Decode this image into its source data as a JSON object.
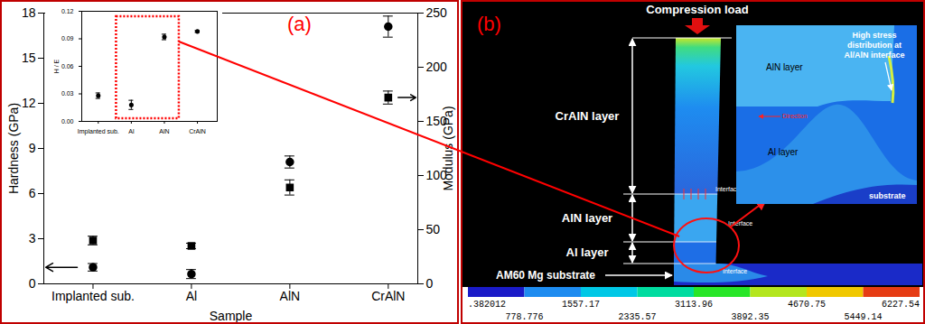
{
  "chart_data": [
    {
      "type": "scatter",
      "title": "(a)",
      "categories": [
        "Implanted sub.",
        "Al",
        "AlN",
        "CrAlN"
      ],
      "xlabel": "Sample",
      "ylabel": "Hardness (GPa)",
      "y2label": "Modulus (GPa)",
      "ylim": [
        0,
        18
      ],
      "yticks": [
        0,
        3,
        6,
        9,
        12,
        15,
        18
      ],
      "y2lim": [
        0,
        250
      ],
      "y2ticks": [
        0,
        50,
        100,
        150,
        200,
        250
      ],
      "series": [
        {
          "axis": "y",
          "marker": "circle",
          "color": "#000000",
          "values": [
            1.1,
            0.65,
            8.1,
            17.1
          ],
          "errors": [
            0.25,
            0.3,
            0.4,
            0.7
          ]
        },
        {
          "axis": "y2",
          "marker": "square",
          "color": "#000000",
          "values": [
            40,
            35,
            89,
            172
          ],
          "errors": [
            4,
            2.5,
            7,
            6
          ]
        }
      ]
    },
    {
      "type": "scatter",
      "categories": [
        "Implanted sub.",
        "Al",
        "AlN",
        "CrAlN"
      ],
      "ylabel": "H / E",
      "ylim": [
        0,
        0.12
      ],
      "yticks": [
        {
          "value": 0,
          "label": "0.00"
        },
        {
          "value": 0.03,
          "label": "0.03"
        },
        {
          "value": 0.06,
          "label": "0.06"
        },
        {
          "value": 0.09,
          "label": "0.09"
        },
        {
          "value": 0.12,
          "label": "0.12"
        }
      ],
      "series": [
        {
          "marker": "circle",
          "color": "#000000",
          "values": [
            0.028,
            0.018,
            0.092,
            0.098
          ],
          "errors": [
            0.003,
            0.005,
            0.003,
            0.001
          ]
        }
      ]
    }
  ],
  "diagram": {
    "title": "(b)",
    "load_label": "Compression load",
    "layers": [
      "CrAlN layer",
      "AlN layer",
      "Al layer",
      "AM60 Mg substrate"
    ],
    "interfaces": [
      "Interface",
      "Interface",
      "Interface"
    ],
    "zoom": {
      "labels": [
        "AlN layer",
        "Al layer",
        "substrate"
      ],
      "callout": "High stress distribution at Al/AlN interface",
      "direction_label": "Direction"
    },
    "colorbar": {
      "range": [
        0.382012,
        6227.54
      ],
      "ticks": [
        {
          "value": 0.382012,
          "label": ".382012"
        },
        778.776,
        1557.17,
        2335.57,
        3113.96,
        3892.35,
        4670.75,
        5449.14,
        6227.54
      ]
    }
  }
}
